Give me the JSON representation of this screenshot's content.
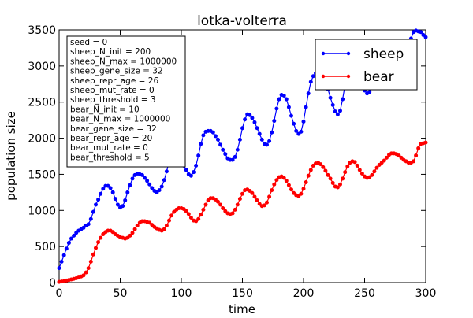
{
  "chart_data": {
    "type": "line",
    "title": "lotka-volterra",
    "xlabel": "time",
    "ylabel": "population size",
    "xlim": [
      0,
      300
    ],
    "ylim": [
      0,
      3500
    ],
    "xticks": [
      0,
      50,
      100,
      150,
      200,
      250,
      300
    ],
    "yticks": [
      0,
      500,
      1000,
      1500,
      2000,
      2500,
      3000,
      3500
    ],
    "grid": false,
    "legend_position": "top-right",
    "parameters_box": [
      "seed = 0",
      "sheep_N_init = 200",
      "sheep_N_max = 1000000",
      "sheep_gene_size = 32",
      "sheep_repr_age = 26",
      "sheep_mut_rate = 0",
      "sheep_threshold = 3",
      "bear_N_init = 10",
      "bear_N_max = 1000000",
      "bear_gene_size = 32",
      "bear_repr_age = 20",
      "bear_mut_rate = 0",
      "bear_threshold = 5"
    ],
    "series": [
      {
        "name": "sheep",
        "color": "#0000ff",
        "points": [
          [
            0,
            200
          ],
          [
            2,
            290
          ],
          [
            4,
            380
          ],
          [
            6,
            470
          ],
          [
            8,
            550
          ],
          [
            10,
            610
          ],
          [
            12,
            650
          ],
          [
            14,
            690
          ],
          [
            16,
            720
          ],
          [
            18,
            740
          ],
          [
            20,
            760
          ],
          [
            22,
            790
          ],
          [
            24,
            810
          ],
          [
            26,
            880
          ],
          [
            28,
            980
          ],
          [
            30,
            1080
          ],
          [
            32,
            1150
          ],
          [
            34,
            1230
          ],
          [
            36,
            1300
          ],
          [
            38,
            1340
          ],
          [
            40,
            1340
          ],
          [
            42,
            1310
          ],
          [
            44,
            1250
          ],
          [
            46,
            1160
          ],
          [
            48,
            1080
          ],
          [
            50,
            1040
          ],
          [
            52,
            1060
          ],
          [
            54,
            1140
          ],
          [
            56,
            1250
          ],
          [
            58,
            1350
          ],
          [
            60,
            1440
          ],
          [
            62,
            1490
          ],
          [
            64,
            1510
          ],
          [
            66,
            1500
          ],
          [
            68,
            1490
          ],
          [
            70,
            1450
          ],
          [
            72,
            1410
          ],
          [
            74,
            1360
          ],
          [
            76,
            1310
          ],
          [
            78,
            1270
          ],
          [
            80,
            1250
          ],
          [
            82,
            1280
          ],
          [
            84,
            1330
          ],
          [
            86,
            1420
          ],
          [
            88,
            1540
          ],
          [
            90,
            1680
          ],
          [
            92,
            1780
          ],
          [
            94,
            1760
          ],
          [
            96,
            1720
          ],
          [
            98,
            1700
          ],
          [
            100,
            1700
          ],
          [
            102,
            1620
          ],
          [
            104,
            1560
          ],
          [
            106,
            1500
          ],
          [
            108,
            1480
          ],
          [
            110,
            1530
          ],
          [
            112,
            1620
          ],
          [
            114,
            1760
          ],
          [
            116,
            1920
          ],
          [
            118,
            2040
          ],
          [
            120,
            2090
          ],
          [
            122,
            2100
          ],
          [
            124,
            2100
          ],
          [
            126,
            2080
          ],
          [
            128,
            2030
          ],
          [
            130,
            1980
          ],
          [
            132,
            1910
          ],
          [
            134,
            1840
          ],
          [
            136,
            1780
          ],
          [
            138,
            1720
          ],
          [
            140,
            1700
          ],
          [
            142,
            1700
          ],
          [
            144,
            1740
          ],
          [
            146,
            1840
          ],
          [
            148,
            1980
          ],
          [
            150,
            2140
          ],
          [
            152,
            2260
          ],
          [
            154,
            2330
          ],
          [
            156,
            2320
          ],
          [
            158,
            2280
          ],
          [
            160,
            2220
          ],
          [
            162,
            2140
          ],
          [
            164,
            2060
          ],
          [
            166,
            1980
          ],
          [
            168,
            1920
          ],
          [
            170,
            1910
          ],
          [
            172,
            1960
          ],
          [
            174,
            2080
          ],
          [
            176,
            2240
          ],
          [
            178,
            2410
          ],
          [
            180,
            2540
          ],
          [
            182,
            2600
          ],
          [
            184,
            2590
          ],
          [
            186,
            2540
          ],
          [
            188,
            2430
          ],
          [
            190,
            2310
          ],
          [
            192,
            2200
          ],
          [
            194,
            2100
          ],
          [
            196,
            2060
          ],
          [
            198,
            2090
          ],
          [
            200,
            2230
          ],
          [
            202,
            2430
          ],
          [
            204,
            2620
          ],
          [
            206,
            2780
          ],
          [
            208,
            2860
          ],
          [
            210,
            2900
          ],
          [
            212,
            2930
          ],
          [
            214,
            2970
          ],
          [
            216,
            2910
          ],
          [
            218,
            2810
          ],
          [
            220,
            2680
          ],
          [
            222,
            2560
          ],
          [
            224,
            2460
          ],
          [
            226,
            2370
          ],
          [
            228,
            2330
          ],
          [
            230,
            2380
          ],
          [
            232,
            2540
          ],
          [
            234,
            2740
          ],
          [
            236,
            2920
          ],
          [
            238,
            3040
          ],
          [
            240,
            3050
          ],
          [
            242,
            3000
          ],
          [
            244,
            2920
          ],
          [
            246,
            2820
          ],
          [
            248,
            2730
          ],
          [
            250,
            2660
          ],
          [
            252,
            2620
          ],
          [
            254,
            2640
          ],
          [
            256,
            2710
          ],
          [
            258,
            2800
          ],
          [
            260,
            2900
          ],
          [
            262,
            3000
          ],
          [
            264,
            3100
          ],
          [
            266,
            3180
          ],
          [
            268,
            3230
          ],
          [
            270,
            3240
          ],
          [
            272,
            3230
          ],
          [
            274,
            3200
          ],
          [
            276,
            3160
          ],
          [
            278,
            3110
          ],
          [
            280,
            3070
          ],
          [
            282,
            3060
          ],
          [
            284,
            3100
          ],
          [
            286,
            3220
          ],
          [
            288,
            3380
          ],
          [
            290,
            3470
          ],
          [
            292,
            3490
          ],
          [
            294,
            3480
          ],
          [
            296,
            3470
          ],
          [
            298,
            3430
          ],
          [
            300,
            3400
          ]
        ]
      },
      {
        "name": "bear",
        "color": "#ff0000",
        "points": [
          [
            0,
            10
          ],
          [
            2,
            15
          ],
          [
            4,
            20
          ],
          [
            6,
            28
          ],
          [
            8,
            36
          ],
          [
            10,
            44
          ],
          [
            12,
            52
          ],
          [
            14,
            60
          ],
          [
            16,
            70
          ],
          [
            18,
            85
          ],
          [
            20,
            100
          ],
          [
            22,
            140
          ],
          [
            24,
            200
          ],
          [
            26,
            290
          ],
          [
            28,
            390
          ],
          [
            30,
            480
          ],
          [
            32,
            560
          ],
          [
            34,
            620
          ],
          [
            36,
            670
          ],
          [
            38,
            700
          ],
          [
            40,
            720
          ],
          [
            42,
            720
          ],
          [
            44,
            700
          ],
          [
            46,
            670
          ],
          [
            48,
            650
          ],
          [
            50,
            630
          ],
          [
            52,
            620
          ],
          [
            54,
            610
          ],
          [
            56,
            620
          ],
          [
            58,
            650
          ],
          [
            60,
            690
          ],
          [
            62,
            740
          ],
          [
            64,
            790
          ],
          [
            66,
            830
          ],
          [
            68,
            850
          ],
          [
            70,
            850
          ],
          [
            72,
            840
          ],
          [
            74,
            830
          ],
          [
            76,
            800
          ],
          [
            78,
            770
          ],
          [
            80,
            750
          ],
          [
            82,
            730
          ],
          [
            84,
            720
          ],
          [
            86,
            740
          ],
          [
            88,
            790
          ],
          [
            90,
            860
          ],
          [
            92,
            930
          ],
          [
            94,
            980
          ],
          [
            96,
            1010
          ],
          [
            98,
            1030
          ],
          [
            100,
            1030
          ],
          [
            102,
            1020
          ],
          [
            104,
            990
          ],
          [
            106,
            950
          ],
          [
            108,
            900
          ],
          [
            110,
            860
          ],
          [
            112,
            850
          ],
          [
            114,
            880
          ],
          [
            116,
            940
          ],
          [
            118,
            1010
          ],
          [
            120,
            1080
          ],
          [
            122,
            1140
          ],
          [
            124,
            1170
          ],
          [
            126,
            1170
          ],
          [
            128,
            1150
          ],
          [
            130,
            1120
          ],
          [
            132,
            1080
          ],
          [
            134,
            1030
          ],
          [
            136,
            990
          ],
          [
            138,
            960
          ],
          [
            140,
            950
          ],
          [
            142,
            960
          ],
          [
            144,
            1010
          ],
          [
            146,
            1080
          ],
          [
            148,
            1160
          ],
          [
            150,
            1230
          ],
          [
            152,
            1280
          ],
          [
            154,
            1290
          ],
          [
            156,
            1270
          ],
          [
            158,
            1240
          ],
          [
            160,
            1190
          ],
          [
            162,
            1140
          ],
          [
            164,
            1090
          ],
          [
            166,
            1060
          ],
          [
            168,
            1070
          ],
          [
            170,
            1110
          ],
          [
            172,
            1190
          ],
          [
            174,
            1280
          ],
          [
            176,
            1360
          ],
          [
            178,
            1420
          ],
          [
            180,
            1460
          ],
          [
            182,
            1470
          ],
          [
            184,
            1450
          ],
          [
            186,
            1410
          ],
          [
            188,
            1350
          ],
          [
            190,
            1290
          ],
          [
            192,
            1240
          ],
          [
            194,
            1210
          ],
          [
            196,
            1200
          ],
          [
            198,
            1230
          ],
          [
            200,
            1300
          ],
          [
            202,
            1390
          ],
          [
            204,
            1480
          ],
          [
            206,
            1560
          ],
          [
            208,
            1620
          ],
          [
            210,
            1650
          ],
          [
            212,
            1660
          ],
          [
            214,
            1640
          ],
          [
            216,
            1600
          ],
          [
            218,
            1550
          ],
          [
            220,
            1490
          ],
          [
            222,
            1440
          ],
          [
            224,
            1380
          ],
          [
            226,
            1330
          ],
          [
            228,
            1320
          ],
          [
            230,
            1360
          ],
          [
            232,
            1440
          ],
          [
            234,
            1530
          ],
          [
            236,
            1610
          ],
          [
            238,
            1660
          ],
          [
            240,
            1680
          ],
          [
            242,
            1670
          ],
          [
            244,
            1620
          ],
          [
            246,
            1560
          ],
          [
            248,
            1510
          ],
          [
            250,
            1470
          ],
          [
            252,
            1450
          ],
          [
            254,
            1460
          ],
          [
            256,
            1490
          ],
          [
            258,
            1540
          ],
          [
            260,
            1590
          ],
          [
            262,
            1630
          ],
          [
            264,
            1660
          ],
          [
            266,
            1690
          ],
          [
            268,
            1730
          ],
          [
            270,
            1770
          ],
          [
            272,
            1790
          ],
          [
            274,
            1790
          ],
          [
            276,
            1780
          ],
          [
            278,
            1760
          ],
          [
            280,
            1730
          ],
          [
            282,
            1700
          ],
          [
            284,
            1680
          ],
          [
            286,
            1660
          ],
          [
            288,
            1660
          ],
          [
            290,
            1680
          ],
          [
            292,
            1760
          ],
          [
            294,
            1860
          ],
          [
            296,
            1920
          ],
          [
            298,
            1930
          ],
          [
            300,
            1940
          ]
        ]
      }
    ]
  }
}
